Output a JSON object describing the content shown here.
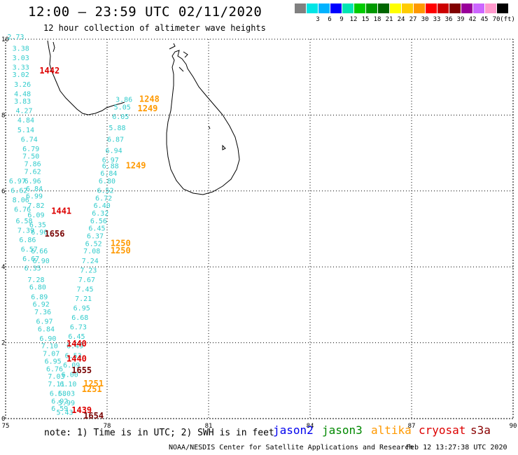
{
  "header": {
    "title": "12:00 – 23:59 UTC 02/11/2020",
    "subtitle": "12 hour collection of altimeter wave heights"
  },
  "legend": {
    "unit": "(ft)",
    "items": [
      {
        "label": "",
        "color": "#808080"
      },
      {
        "label": "3",
        "color": "#00e5e5"
      },
      {
        "label": "6",
        "color": "#00b2ff"
      },
      {
        "label": "9",
        "color": "#0000ff"
      },
      {
        "label": "12",
        "color": "#00e5b2"
      },
      {
        "label": "15",
        "color": "#00cc00"
      },
      {
        "label": "18",
        "color": "#009900"
      },
      {
        "label": "21",
        "color": "#006600"
      },
      {
        "label": "24",
        "color": "#ffff00"
      },
      {
        "label": "27",
        "color": "#ffcc00"
      },
      {
        "label": "30",
        "color": "#ff9900"
      },
      {
        "label": "33",
        "color": "#ff0000"
      },
      {
        "label": "36",
        "color": "#cc0000"
      },
      {
        "label": "39",
        "color": "#800000"
      },
      {
        "label": "42",
        "color": "#990099"
      },
      {
        "label": "45",
        "color": "#cc66ff"
      },
      {
        "label": "70",
        "color": "#ff99cc"
      },
      {
        "label": "",
        "color": "#000000"
      }
    ]
  },
  "axes": {
    "x_ticks": [
      "75",
      "78",
      "81",
      "84",
      "87",
      "90"
    ],
    "y_ticks": [
      "0",
      "2",
      "4",
      "6",
      "8",
      "10"
    ]
  },
  "satellites": [
    {
      "name": "jason2",
      "color": "#0000ee"
    },
    {
      "name": "jason3",
      "color": "#008800"
    },
    {
      "name": "altika",
      "color": "#ff9900"
    },
    {
      "name": "cryosat",
      "color": "#dd0000"
    },
    {
      "name": "s3a",
      "color": "#880000"
    }
  ],
  "note": "note: 1) Time is in UTC; 2) SWH is in feet",
  "footer": {
    "credit": "NOAA/NESDIS Center for Satellite Applications and Research",
    "timestamp": "Feb 12 13:27:38 UTC 2020"
  },
  "track_colors": {
    "wave": "#33cccc",
    "time_red": "#dd0000",
    "time_orange": "#ff9900",
    "time_dark": "#770000"
  },
  "time_labels": [
    {
      "text": "1442",
      "kind": "time_red",
      "lon": 76.0,
      "lat": 9.1
    },
    {
      "text": "1248",
      "kind": "time_orange",
      "lon": 78.95,
      "lat": 8.35
    },
    {
      "text": "1249",
      "kind": "time_orange",
      "lon": 78.9,
      "lat": 8.1
    },
    {
      "text": "1249",
      "kind": "time_orange",
      "lon": 78.55,
      "lat": 6.6
    },
    {
      "text": "1441",
      "kind": "time_red",
      "lon": 76.35,
      "lat": 5.4
    },
    {
      "text": "1656",
      "kind": "time_dark",
      "lon": 76.15,
      "lat": 4.8
    },
    {
      "text": "1250",
      "kind": "time_orange",
      "lon": 78.1,
      "lat": 4.55
    },
    {
      "text": "1250",
      "kind": "time_orange",
      "lon": 78.1,
      "lat": 4.35
    },
    {
      "text": "1440",
      "kind": "time_red",
      "lon": 76.8,
      "lat": 1.9
    },
    {
      "text": "1440",
      "kind": "time_red",
      "lon": 76.8,
      "lat": 1.5
    },
    {
      "text": "1655",
      "kind": "time_dark",
      "lon": 76.95,
      "lat": 1.2
    },
    {
      "text": "1251",
      "kind": "time_orange",
      "lon": 77.3,
      "lat": 0.85
    },
    {
      "text": "1251",
      "kind": "time_orange",
      "lon": 77.25,
      "lat": 0.7
    },
    {
      "text": "1439",
      "kind": "time_red",
      "lon": 76.95,
      "lat": 0.15
    },
    {
      "text": "1654",
      "kind": "time_dark",
      "lon": 77.3,
      "lat": 0.0
    }
  ],
  "wave_heights": [
    {
      "text": "2.73",
      "lon": 75.05,
      "lat": 10.0
    },
    {
      "text": "3.38",
      "lon": 75.2,
      "lat": 9.7
    },
    {
      "text": "3.03",
      "lon": 75.2,
      "lat": 9.45
    },
    {
      "text": "3.33",
      "lon": 75.2,
      "lat": 9.2
    },
    {
      "text": "3.02",
      "lon": 75.2,
      "lat": 9.0
    },
    {
      "text": "3.26",
      "lon": 75.25,
      "lat": 8.75
    },
    {
      "text": "4.48",
      "lon": 75.25,
      "lat": 8.5
    },
    {
      "text": "3.83",
      "lon": 75.25,
      "lat": 8.3
    },
    {
      "text": "4.27",
      "lon": 75.3,
      "lat": 8.05
    },
    {
      "text": "4.84",
      "lon": 75.35,
      "lat": 7.8
    },
    {
      "text": "5.14",
      "lon": 75.35,
      "lat": 7.55
    },
    {
      "text": "6.74",
      "lon": 75.45,
      "lat": 7.3
    },
    {
      "text": "6.79",
      "lon": 75.5,
      "lat": 7.05
    },
    {
      "text": "7.50",
      "lon": 75.5,
      "lat": 6.85
    },
    {
      "text": "7.86",
      "lon": 75.55,
      "lat": 6.65
    },
    {
      "text": "7.62",
      "lon": 75.55,
      "lat": 6.45
    },
    {
      "text": "6.96",
      "lon": 75.55,
      "lat": 6.2
    },
    {
      "text": "6.97",
      "lon": 75.1,
      "lat": 6.2
    },
    {
      "text": "6.84",
      "lon": 75.6,
      "lat": 6.0
    },
    {
      "text": "6.62",
      "lon": 75.15,
      "lat": 5.95
    },
    {
      "text": "6.99",
      "lon": 75.6,
      "lat": 5.8
    },
    {
      "text": "8.06",
      "lon": 75.2,
      "lat": 5.7
    },
    {
      "text": "7.82",
      "lon": 75.65,
      "lat": 5.55
    },
    {
      "text": "6.76",
      "lon": 75.25,
      "lat": 5.45
    },
    {
      "text": "6.09",
      "lon": 75.65,
      "lat": 5.3
    },
    {
      "text": "6.58",
      "lon": 75.3,
      "lat": 5.15
    },
    {
      "text": "6.35",
      "lon": 75.7,
      "lat": 5.05
    },
    {
      "text": "7.39",
      "lon": 75.35,
      "lat": 4.9
    },
    {
      "text": "6.90",
      "lon": 75.75,
      "lat": 4.85
    },
    {
      "text": "6.86",
      "lon": 75.4,
      "lat": 4.65
    },
    {
      "text": "6.66",
      "lon": 75.75,
      "lat": 4.35
    },
    {
      "text": "6.57",
      "lon": 75.45,
      "lat": 4.4
    },
    {
      "text": "6.90",
      "lon": 75.8,
      "lat": 4.1
    },
    {
      "text": "6.67",
      "lon": 75.5,
      "lat": 4.15
    },
    {
      "text": "6.35",
      "lon": 75.55,
      "lat": 3.9
    },
    {
      "text": "7.28",
      "lon": 75.65,
      "lat": 3.6
    },
    {
      "text": "6.80",
      "lon": 75.7,
      "lat": 3.4
    },
    {
      "text": "6.89",
      "lon": 75.75,
      "lat": 3.15
    },
    {
      "text": "6.92",
      "lon": 75.8,
      "lat": 2.95
    },
    {
      "text": "7.36",
      "lon": 75.85,
      "lat": 2.75
    },
    {
      "text": "6.97",
      "lon": 75.9,
      "lat": 2.5
    },
    {
      "text": "6.84",
      "lon": 75.95,
      "lat": 2.3
    },
    {
      "text": "6.90",
      "lon": 76.0,
      "lat": 2.05
    },
    {
      "text": "7.10",
      "lon": 76.05,
      "lat": 1.85
    },
    {
      "text": "7.07",
      "lon": 76.1,
      "lat": 1.65
    },
    {
      "text": "6.95",
      "lon": 76.15,
      "lat": 1.45
    },
    {
      "text": "6.76",
      "lon": 76.2,
      "lat": 1.25
    },
    {
      "text": "7.03",
      "lon": 76.25,
      "lat": 1.05
    },
    {
      "text": "7.11",
      "lon": 76.25,
      "lat": 0.85
    },
    {
      "text": "6.58",
      "lon": 76.3,
      "lat": 0.6
    },
    {
      "text": "6.92",
      "lon": 76.35,
      "lat": 0.4
    },
    {
      "text": "6.59",
      "lon": 76.35,
      "lat": 0.2
    },
    {
      "text": "3.86",
      "lon": 78.25,
      "lat": 8.35
    },
    {
      "text": "5.05",
      "lon": 78.2,
      "lat": 8.15
    },
    {
      "text": "6.05",
      "lon": 78.15,
      "lat": 7.9
    },
    {
      "text": "5.88",
      "lon": 78.05,
      "lat": 7.6
    },
    {
      "text": "6.87",
      "lon": 78.0,
      "lat": 7.3
    },
    {
      "text": "6.94",
      "lon": 77.95,
      "lat": 7.0
    },
    {
      "text": "6.97",
      "lon": 77.85,
      "lat": 6.75
    },
    {
      "text": "6.88",
      "lon": 77.85,
      "lat": 6.6
    },
    {
      "text": "6.84",
      "lon": 77.8,
      "lat": 6.4
    },
    {
      "text": "6.80",
      "lon": 77.75,
      "lat": 6.2
    },
    {
      "text": "6.52",
      "lon": 77.7,
      "lat": 5.95
    },
    {
      "text": "6.72",
      "lon": 77.65,
      "lat": 5.75
    },
    {
      "text": "6.40",
      "lon": 77.6,
      "lat": 5.55
    },
    {
      "text": "6.32",
      "lon": 77.55,
      "lat": 5.35
    },
    {
      "text": "6.56",
      "lon": 77.5,
      "lat": 5.15
    },
    {
      "text": "6.45",
      "lon": 77.45,
      "lat": 4.95
    },
    {
      "text": "6.37",
      "lon": 77.4,
      "lat": 4.75
    },
    {
      "text": "6.52",
      "lon": 77.35,
      "lat": 4.55
    },
    {
      "text": "7.08",
      "lon": 77.3,
      "lat": 4.35
    },
    {
      "text": "7.24",
      "lon": 77.25,
      "lat": 4.1
    },
    {
      "text": "7.23",
      "lon": 77.2,
      "lat": 3.85
    },
    {
      "text": "7.67",
      "lon": 77.15,
      "lat": 3.6
    },
    {
      "text": "7.45",
      "lon": 77.1,
      "lat": 3.35
    },
    {
      "text": "7.21",
      "lon": 77.05,
      "lat": 3.1
    },
    {
      "text": "6.95",
      "lon": 77.0,
      "lat": 2.85
    },
    {
      "text": "6.68",
      "lon": 76.95,
      "lat": 2.6
    },
    {
      "text": "6.73",
      "lon": 76.9,
      "lat": 2.35
    },
    {
      "text": "6.45",
      "lon": 76.85,
      "lat": 2.1
    },
    {
      "text": "6.49",
      "lon": 76.8,
      "lat": 1.85
    },
    {
      "text": "6.53",
      "lon": 76.75,
      "lat": 1.6
    },
    {
      "text": "6.09",
      "lon": 76.7,
      "lat": 1.35
    },
    {
      "text": "6.00",
      "lon": 76.65,
      "lat": 1.1
    },
    {
      "text": "6.10",
      "lon": 76.6,
      "lat": 0.85
    },
    {
      "text": "6.03",
      "lon": 76.55,
      "lat": 0.6
    },
    {
      "text": "5.99",
      "lon": 76.55,
      "lat": 0.35
    },
    {
      "text": "5.43",
      "lon": 76.5,
      "lat": 0.1
    }
  ]
}
